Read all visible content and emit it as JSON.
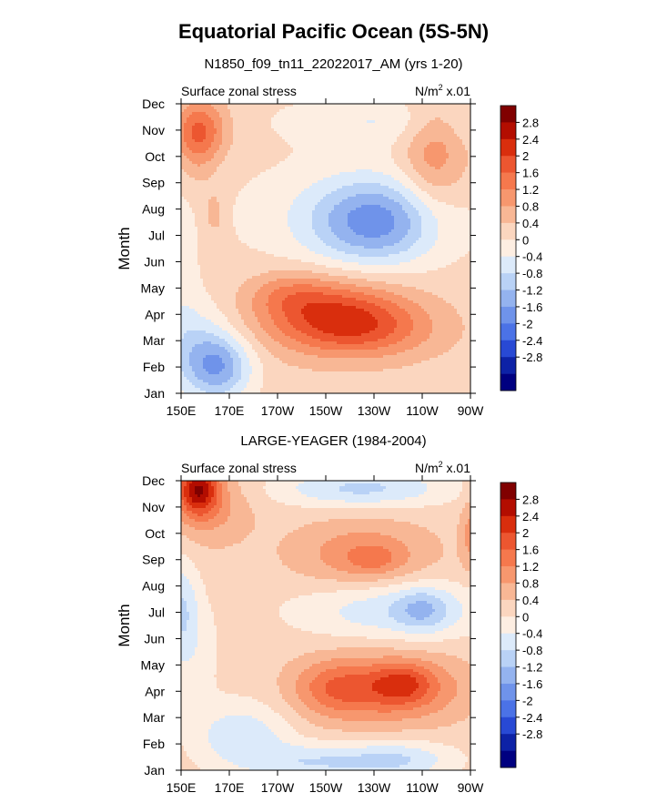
{
  "title": "Equatorial Pacific Ocean (5S-5N)",
  "chart_data": [
    {
      "type": "heatmap",
      "panel_title": "N1850_f09_tn11_22022017_AM (yrs 1-20)",
      "left_label": "Surface zonal stress",
      "units_prefix": "N/m",
      "units_sup": "2",
      "units_suffix": " x.01",
      "ylabel": "Month",
      "xlabel": "",
      "x_ticks": [
        "150E",
        "170E",
        "170W",
        "150W",
        "130W",
        "110W",
        "90W"
      ],
      "y_ticks": [
        "Jan",
        "Feb",
        "Mar",
        "Apr",
        "May",
        "Jun",
        "Jul",
        "Aug",
        "Sep",
        "Oct",
        "Nov",
        "Dec"
      ],
      "xlim": [
        150,
        270
      ],
      "ylim": [
        1,
        12
      ],
      "features": [
        {
          "x": 158,
          "y": 11.0,
          "amp": 1.2,
          "sx": 8,
          "sy": 0.8
        },
        {
          "x": 156,
          "y": 10.3,
          "amp": 0.5,
          "sx": 6,
          "sy": 1.2
        },
        {
          "x": 254,
          "y": 10.2,
          "amp": 0.8,
          "sx": 9,
          "sy": 1.6
        },
        {
          "x": 164,
          "y": 7.8,
          "amp": 0.5,
          "sx": 3,
          "sy": 0.6
        },
        {
          "x": 230,
          "y": 7.5,
          "amp": -1.6,
          "sx": 18,
          "sy": 1.1
        },
        {
          "x": 222,
          "y": 7.8,
          "amp": -0.5,
          "sx": 38,
          "sy": 1.6
        },
        {
          "x": 260,
          "y": 10.2,
          "amp": 0.2,
          "sx": 12,
          "sy": 2.2
        },
        {
          "x": 215,
          "y": 3.9,
          "amp": 1.9,
          "sx": 22,
          "sy": 0.95
        },
        {
          "x": 232,
          "y": 3.3,
          "amp": 0.5,
          "sx": 20,
          "sy": 0.7
        },
        {
          "x": 195,
          "y": 4.8,
          "amp": 0.6,
          "sx": 12,
          "sy": 0.6
        },
        {
          "x": 165,
          "y": 2.0,
          "amp": -1.7,
          "sx": 10,
          "sy": 0.9
        },
        {
          "x": 156,
          "y": 3.2,
          "amp": -0.6,
          "sx": 10,
          "sy": 1.2
        },
        {
          "x": 238,
          "y": 11.4,
          "amp": -0.6,
          "sx": 32,
          "sy": 0.7
        },
        {
          "x": 150,
          "y": 6.0,
          "amp": -0.3,
          "sx": 5,
          "sy": 3.5
        }
      ],
      "background": 0.2,
      "colorbar": {
        "labels": [
          "2.8",
          "2.4",
          "2",
          "1.6",
          "1.2",
          "0.8",
          "0.4",
          "0",
          "-0.4",
          "-0.8",
          "-1.2",
          "-1.6",
          "-2",
          "-2.4",
          "-2.8"
        ],
        "colors": [
          "#800000",
          "#b30d00",
          "#d92e0d",
          "#ec5630",
          "#f5784d",
          "#f7976e",
          "#f8b795",
          "#fbd6bf",
          "#fdeee2",
          "#dceafa",
          "#b9d2f6",
          "#94b3ef",
          "#6f93ea",
          "#4b72e6",
          "#2849d4",
          "#0d22a6",
          "#000080"
        ]
      }
    },
    {
      "type": "heatmap",
      "panel_title": "LARGE-YEAGER (1984-2004)",
      "left_label": "Surface zonal stress",
      "units_prefix": "N/m",
      "units_sup": "2",
      "units_suffix": " x.01",
      "ylabel": "Month",
      "xlabel": "",
      "x_ticks": [
        "150E",
        "170E",
        "170W",
        "150W",
        "130W",
        "110W",
        "90W"
      ],
      "y_ticks": [
        "Jan",
        "Feb",
        "Mar",
        "Apr",
        "May",
        "Jun",
        "Jul",
        "Aug",
        "Sep",
        "Oct",
        "Nov",
        "Dec"
      ],
      "xlim": [
        150,
        270
      ],
      "ylim": [
        1,
        12
      ],
      "features": [
        {
          "x": 157,
          "y": 11.7,
          "amp": 2.2,
          "sx": 6,
          "sy": 0.7
        },
        {
          "x": 162,
          "y": 11.0,
          "amp": 0.7,
          "sx": 12,
          "sy": 1.0
        },
        {
          "x": 225,
          "y": 9.2,
          "amp": 0.9,
          "sx": 20,
          "sy": 0.9
        },
        {
          "x": 230,
          "y": 9.0,
          "amp": 0.5,
          "sx": 8,
          "sy": 0.4
        },
        {
          "x": 225,
          "y": 11.7,
          "amp": -1.1,
          "sx": 25,
          "sy": 0.5
        },
        {
          "x": 238,
          "y": 7.1,
          "amp": -0.9,
          "sx": 28,
          "sy": 0.8
        },
        {
          "x": 250,
          "y": 7.1,
          "amp": -0.8,
          "sx": 8,
          "sy": 0.6
        },
        {
          "x": 150,
          "y": 7.2,
          "amp": -0.9,
          "sx": 5,
          "sy": 1.3
        },
        {
          "x": 238,
          "y": 4.1,
          "amp": 1.4,
          "sx": 20,
          "sy": 0.9
        },
        {
          "x": 242,
          "y": 4.3,
          "amp": 0.8,
          "sx": 8,
          "sy": 0.5
        },
        {
          "x": 212,
          "y": 4.1,
          "amp": 0.9,
          "sx": 12,
          "sy": 0.8
        },
        {
          "x": 175,
          "y": 2.3,
          "amp": -0.9,
          "sx": 14,
          "sy": 0.9
        },
        {
          "x": 205,
          "y": 1.3,
          "amp": -0.9,
          "sx": 18,
          "sy": 0.5
        },
        {
          "x": 240,
          "y": 1.4,
          "amp": -1.0,
          "sx": 16,
          "sy": 0.5
        },
        {
          "x": 155,
          "y": 5.5,
          "amp": -0.4,
          "sx": 8,
          "sy": 1.5
        },
        {
          "x": 270,
          "y": 10.0,
          "amp": 0.7,
          "sx": 3,
          "sy": 1.0
        }
      ],
      "background": 0.2,
      "colorbar": {
        "labels": [
          "2.8",
          "2.4",
          "2",
          "1.6",
          "1.2",
          "0.8",
          "0.4",
          "0",
          "-0.4",
          "-0.8",
          "-1.2",
          "-1.6",
          "-2",
          "-2.4",
          "-2.8"
        ],
        "colors": [
          "#800000",
          "#b30d00",
          "#d92e0d",
          "#ec5630",
          "#f5784d",
          "#f7976e",
          "#f8b795",
          "#fbd6bf",
          "#fdeee2",
          "#dceafa",
          "#b9d2f6",
          "#94b3ef",
          "#6f93ea",
          "#4b72e6",
          "#2849d4",
          "#0d22a6",
          "#000080"
        ]
      }
    }
  ]
}
